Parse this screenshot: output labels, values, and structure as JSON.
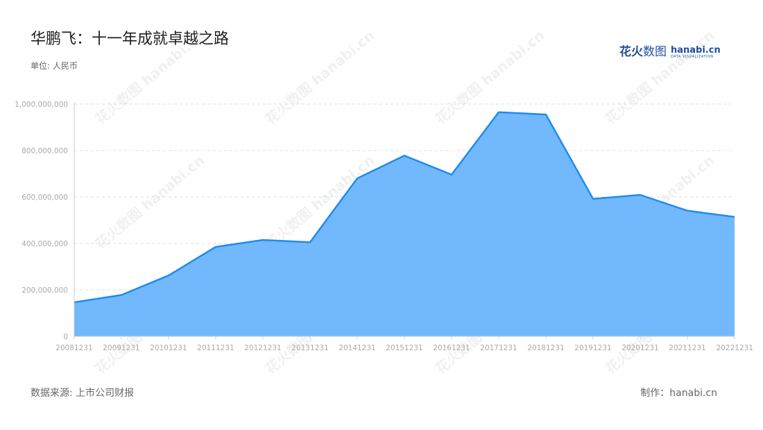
{
  "title": "华鹏飞：十一年成就卓越之路",
  "unit_label": "单位: 人民币",
  "brand": {
    "cn_bold": "花火",
    "cn_light": "数图",
    "domain": "hanabi.cn",
    "tagline": "DATA VISUALIZATION"
  },
  "source": "数据来源: 上市公司财报",
  "credit": "制作：hanabi.cn",
  "colors": {
    "line": "#1E8BF0",
    "area": "#72B8FC",
    "grid": "#dddddd"
  },
  "chart_data": {
    "type": "area",
    "title": "华鹏飞：十一年成就卓越之路",
    "ylabel": "单位: 人民币",
    "xlabel": "",
    "categories": [
      "20081231",
      "20091231",
      "20101231",
      "20111231",
      "20121231",
      "20131231",
      "20141231",
      "20151231",
      "20161231",
      "20171231",
      "20181231",
      "20191231",
      "20201231",
      "20211231",
      "20221231"
    ],
    "values": [
      147000000,
      178000000,
      262000000,
      385000000,
      415000000,
      405000000,
      680000000,
      778000000,
      696000000,
      965000000,
      955000000,
      592000000,
      609000000,
      541000000,
      514000000
    ],
    "ylim": [
      0,
      1000000000
    ],
    "yticks": [
      0,
      200000000,
      400000000,
      600000000,
      800000000,
      1000000000
    ],
    "ytick_labels": [
      "0",
      "200,000,000",
      "400,000,000",
      "600,000,000",
      "800,000,000",
      "1,000,000,000"
    ],
    "grid": true,
    "legend": "none"
  }
}
